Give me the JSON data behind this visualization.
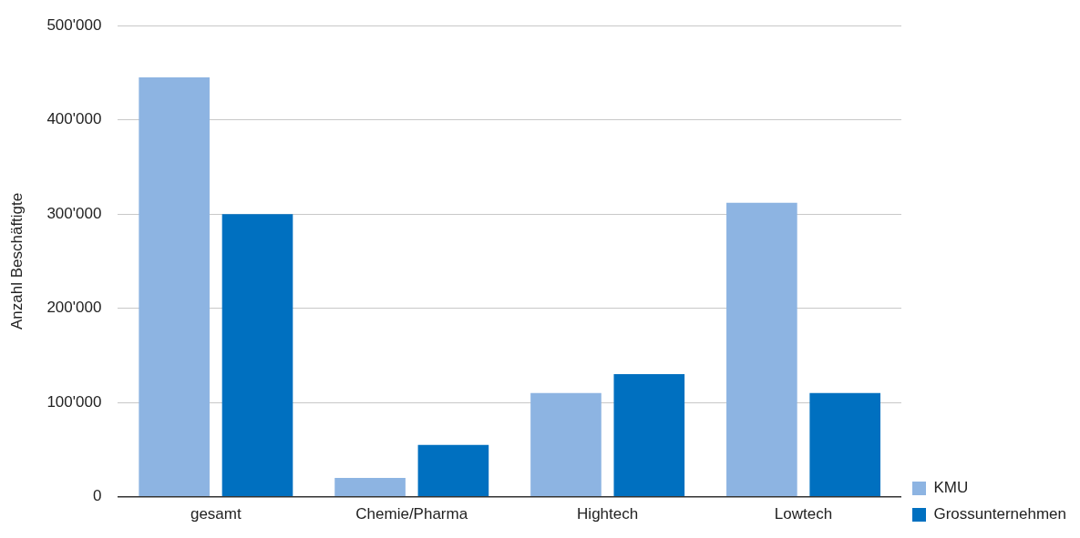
{
  "chart_data": {
    "type": "bar",
    "ylabel": "Anzahl Beschäftigte",
    "categories": [
      "gesamt",
      "Chemie/Pharma",
      "Hightech",
      "Lowtech"
    ],
    "series": [
      {
        "name": "KMU",
        "color": "#8db4e2",
        "values": [
          445000,
          20000,
          110000,
          312000
        ]
      },
      {
        "name": "Grossunternehmen",
        "color": "#0070c0",
        "values": [
          300000,
          55000,
          130000,
          110000
        ]
      }
    ],
    "ylim": [
      0,
      500000
    ],
    "yticks": [
      {
        "value": 0,
        "label": "0"
      },
      {
        "value": 100000,
        "label": "100'000"
      },
      {
        "value": 200000,
        "label": "200'000"
      },
      {
        "value": 300000,
        "label": "300'000"
      },
      {
        "value": 400000,
        "label": "400'000"
      },
      {
        "value": 500000,
        "label": "500'000"
      }
    ],
    "grid": "y",
    "legend": "bottom right"
  }
}
